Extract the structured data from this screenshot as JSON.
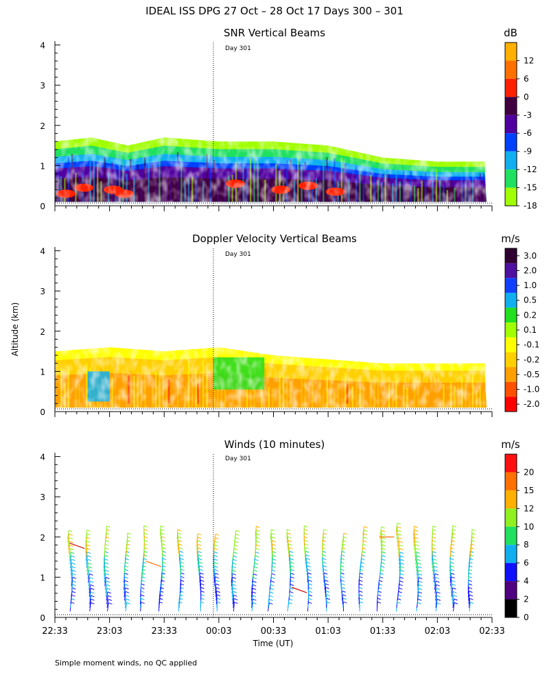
{
  "figure": {
    "title": "IDEAL ISS DPG  27 Oct – 28 Oct 17 Days 300 – 301",
    "ylabel": "Altitude (km)",
    "xlabel": "Time (UT)",
    "footnote": "Simple moment winds, no QC applied",
    "day_marker_label": "Day 301"
  },
  "chart_data": [
    {
      "type": "heatmap",
      "title": "SNR Vertical Beams",
      "units": "dB",
      "ylim": [
        0,
        4
      ],
      "yticks": [
        "0",
        "1",
        "2",
        "3",
        "4"
      ],
      "xlim_minutes": [
        0,
        240
      ],
      "day_marker_minutes": 87,
      "colorbar": {
        "labels": [
          "12",
          "6",
          "0",
          "-3",
          "-6",
          "-9",
          "-12",
          "-15",
          "-18"
        ],
        "colors": [
          "#ffb000",
          "#ff7000",
          "#ff2000",
          "#400040",
          "#5000a0",
          "#0040ff",
          "#10b0f0",
          "#20e060",
          "#a0ff00"
        ]
      },
      "profile": [
        {
          "t": 0,
          "top_km": 1.6
        },
        {
          "t": 20,
          "top_km": 1.7
        },
        {
          "t": 40,
          "top_km": 1.5
        },
        {
          "t": 60,
          "top_km": 1.7
        },
        {
          "t": 90,
          "top_km": 1.6
        },
        {
          "t": 120,
          "top_km": 1.6
        },
        {
          "t": 150,
          "top_km": 1.5
        },
        {
          "t": 180,
          "top_km": 1.2
        },
        {
          "t": 210,
          "top_km": 1.1
        },
        {
          "t": 237,
          "top_km": 1.1
        }
      ]
    },
    {
      "type": "heatmap",
      "title": "Doppler Velocity Vertical Beams",
      "units": "m/s",
      "ylim": [
        0,
        4
      ],
      "yticks": [
        "0",
        "1",
        "2",
        "3",
        "4"
      ],
      "xlim_minutes": [
        0,
        240
      ],
      "day_marker_minutes": 87,
      "colorbar": {
        "labels": [
          "3.0",
          "2.0",
          "1.0",
          "0.5",
          "0.2",
          "0.1",
          "-0.1",
          "-0.2",
          "-0.5",
          "-1.0",
          "-2.0"
        ],
        "colors": [
          "#300030",
          "#5010a0",
          "#1040ff",
          "#10b0f0",
          "#20e020",
          "#a0ff00",
          "#ffff00",
          "#ffd000",
          "#ffa000",
          "#ff5000",
          "#ff0000"
        ]
      },
      "profile": [
        {
          "t": 0,
          "top_km": 1.5
        },
        {
          "t": 30,
          "top_km": 1.6
        },
        {
          "t": 60,
          "top_km": 1.5
        },
        {
          "t": 90,
          "top_km": 1.6
        },
        {
          "t": 120,
          "top_km": 1.4
        },
        {
          "t": 150,
          "top_km": 1.3
        },
        {
          "t": 180,
          "top_km": 1.2
        },
        {
          "t": 210,
          "top_km": 1.2
        },
        {
          "t": 237,
          "top_km": 1.2
        }
      ]
    },
    {
      "type": "wind_barbs",
      "title": "Winds (10 minutes)",
      "units": "m/s",
      "ylim": [
        0,
        4
      ],
      "yticks": [
        "0",
        "1",
        "2",
        "3",
        "4"
      ],
      "xlim_minutes": [
        0,
        240
      ],
      "day_marker_minutes": 87,
      "xtick_labels": [
        "22:33",
        "23:03",
        "23:33",
        "00:03",
        "00:33",
        "01:03",
        "01:33",
        "02:03",
        "02:33"
      ],
      "colorbar": {
        "labels": [
          "20",
          "15",
          "12",
          "10",
          "8",
          "6",
          "4",
          "2",
          "0"
        ],
        "colors": [
          "#ff1010",
          "#ff7000",
          "#ffb000",
          "#90f020",
          "#20e060",
          "#10b0f0",
          "#1010ff",
          "#500080",
          "#000000"
        ]
      },
      "profile_times_minutes": [
        8,
        18,
        28,
        39,
        48,
        58,
        68,
        79,
        88,
        98,
        109,
        118,
        128,
        138,
        148,
        158,
        168,
        178,
        188,
        198,
        208,
        218,
        228
      ]
    }
  ]
}
